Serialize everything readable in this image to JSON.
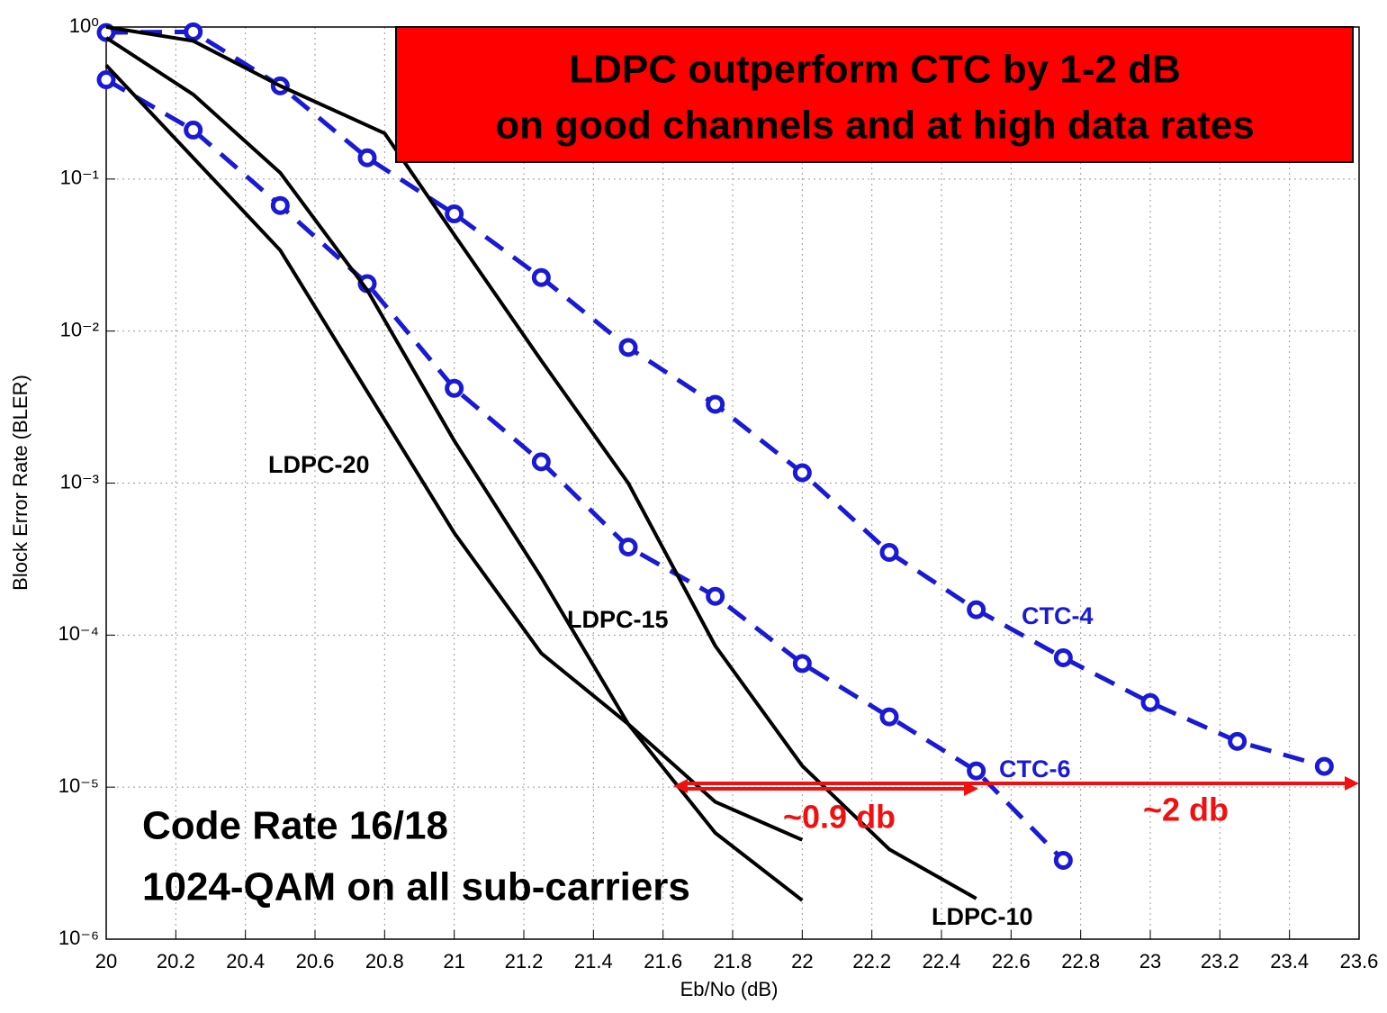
{
  "chart_data": {
    "type": "line",
    "title": [
      "LDPC outperform CTC by 1-2 dB",
      "on good channels and at high data rates"
    ],
    "x_label": "Eb/No (dB)",
    "y_label": "Block Error Rate (BLER)",
    "log_y": true,
    "grid": true,
    "xlim": [
      20,
      23.6
    ],
    "xticks": [
      20,
      20.2,
      20.4,
      20.6,
      20.8,
      21,
      21.2,
      21.4,
      21.6,
      21.8,
      22,
      22.2,
      22.4,
      22.6,
      22.8,
      23,
      23.2,
      23.4,
      23.6
    ],
    "ylim": [
      1e-06,
      1
    ],
    "yticks": [
      {
        "value": 1e-06,
        "label": "10⁻⁶"
      },
      {
        "value": 1e-05,
        "label": "10⁻⁵"
      },
      {
        "value": 0.0001,
        "label": "10⁻⁴"
      },
      {
        "value": 0.001,
        "label": "10⁻³"
      },
      {
        "value": 0.01,
        "label": "10⁻²"
      },
      {
        "value": 0.1,
        "label": "10⁻¹"
      },
      {
        "value": 1,
        "label": "10⁰"
      }
    ],
    "series": [
      {
        "name": "CTC-4",
        "color": "#1a1ad6",
        "style": "dashed",
        "marker": "circle",
        "x": [
          20,
          20.25,
          20.5,
          20.75,
          21,
          21.25,
          21.5,
          21.75,
          22,
          22.25,
          22.5,
          22.75,
          23,
          23.25,
          23.5
        ],
        "values": [
          0.92,
          0.93,
          0.41,
          0.138,
          0.059,
          0.0225,
          0.0078,
          0.0033,
          0.00117,
          0.00035,
          0.000147,
          7.1e-05,
          3.6e-05,
          2e-05,
          1.37e-05
        ]
      },
      {
        "name": "CTC-6",
        "color": "#1a1ad6",
        "style": "dashed",
        "marker": "circle",
        "x": [
          20,
          20.25,
          20.5,
          20.75,
          21,
          21.25,
          21.5,
          21.75,
          22,
          22.25,
          22.5,
          22.75
        ],
        "values": [
          0.45,
          0.21,
          0.067,
          0.0205,
          0.0042,
          0.00138,
          0.00038,
          0.00018,
          6.5e-05,
          2.9e-05,
          1.28e-05,
          3.3e-06
        ]
      },
      {
        "name": "LDPC-20",
        "color": "#000000",
        "style": "solid",
        "marker": "none",
        "x": [
          20,
          20.5,
          21,
          21.25,
          21.5,
          21.75,
          22
        ],
        "values": [
          0.56,
          0.034,
          0.00047,
          7.6e-05,
          2.6e-05,
          5e-06,
          1.8e-06
        ]
      },
      {
        "name": "LDPC-15",
        "color": "#000000",
        "style": "solid",
        "marker": "none",
        "x": [
          20,
          20.25,
          20.5,
          20.75,
          21,
          21.25,
          21.5,
          21.75,
          22
        ],
        "values": [
          0.85,
          0.36,
          0.11,
          0.0186,
          0.0019,
          0.00024,
          2.6e-05,
          8e-06,
          4.5e-06
        ]
      },
      {
        "name": "LDPC-10",
        "color": "#000000",
        "style": "solid",
        "marker": "none",
        "x": [
          20,
          20.25,
          20.5,
          20.8,
          21,
          21.25,
          21.5,
          21.75,
          22,
          22.25,
          22.5
        ],
        "values": [
          1,
          0.81,
          0.41,
          0.2,
          0.043,
          0.0064,
          0.001,
          8.5e-05,
          1.38e-05,
          3.9e-06,
          1.85e-06
        ]
      }
    ],
    "annotations": [
      "~0.9 db",
      "~2 db",
      "Code Rate 16/18",
      "1024-QAM on all sub-carriers"
    ]
  }
}
